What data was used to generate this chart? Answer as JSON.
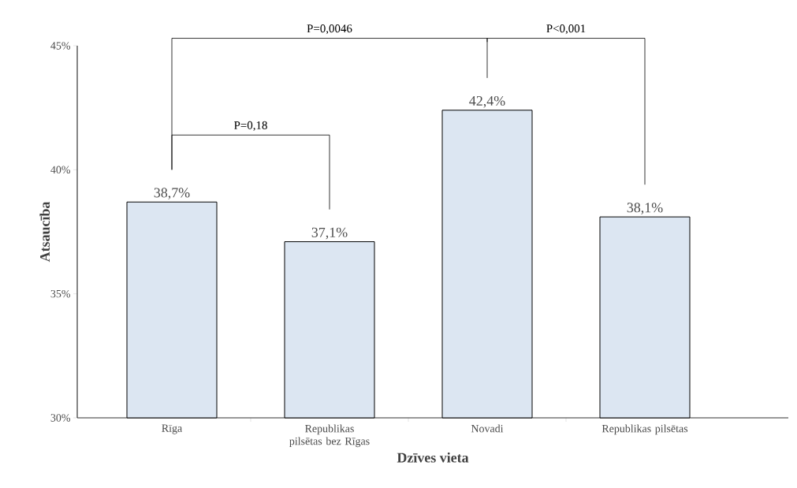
{
  "chart_data": {
    "type": "bar",
    "xlabel": "Dzīves vieta",
    "ylabel": "Atsaucība",
    "categories": [
      "Rīga",
      "Republikas pilsētas bez Rīgas",
      "Novadi",
      "Republikas pilsētas"
    ],
    "values": [
      38.7,
      37.1,
      42.4,
      38.1
    ],
    "value_labels": [
      "38,7%",
      "37,1%",
      "42,4%",
      "38,1%"
    ],
    "color": "#dce6f2",
    "ylim": [
      30,
      45
    ],
    "yticks": [
      {
        "value": 30,
        "label": "30%"
      },
      {
        "value": 35,
        "label": "35%"
      },
      {
        "value": 40,
        "label": "40%"
      },
      {
        "value": 45,
        "label": "45%"
      }
    ],
    "annotations": [
      "P=0,18",
      "P=0,0046",
      "P<0,001"
    ]
  }
}
